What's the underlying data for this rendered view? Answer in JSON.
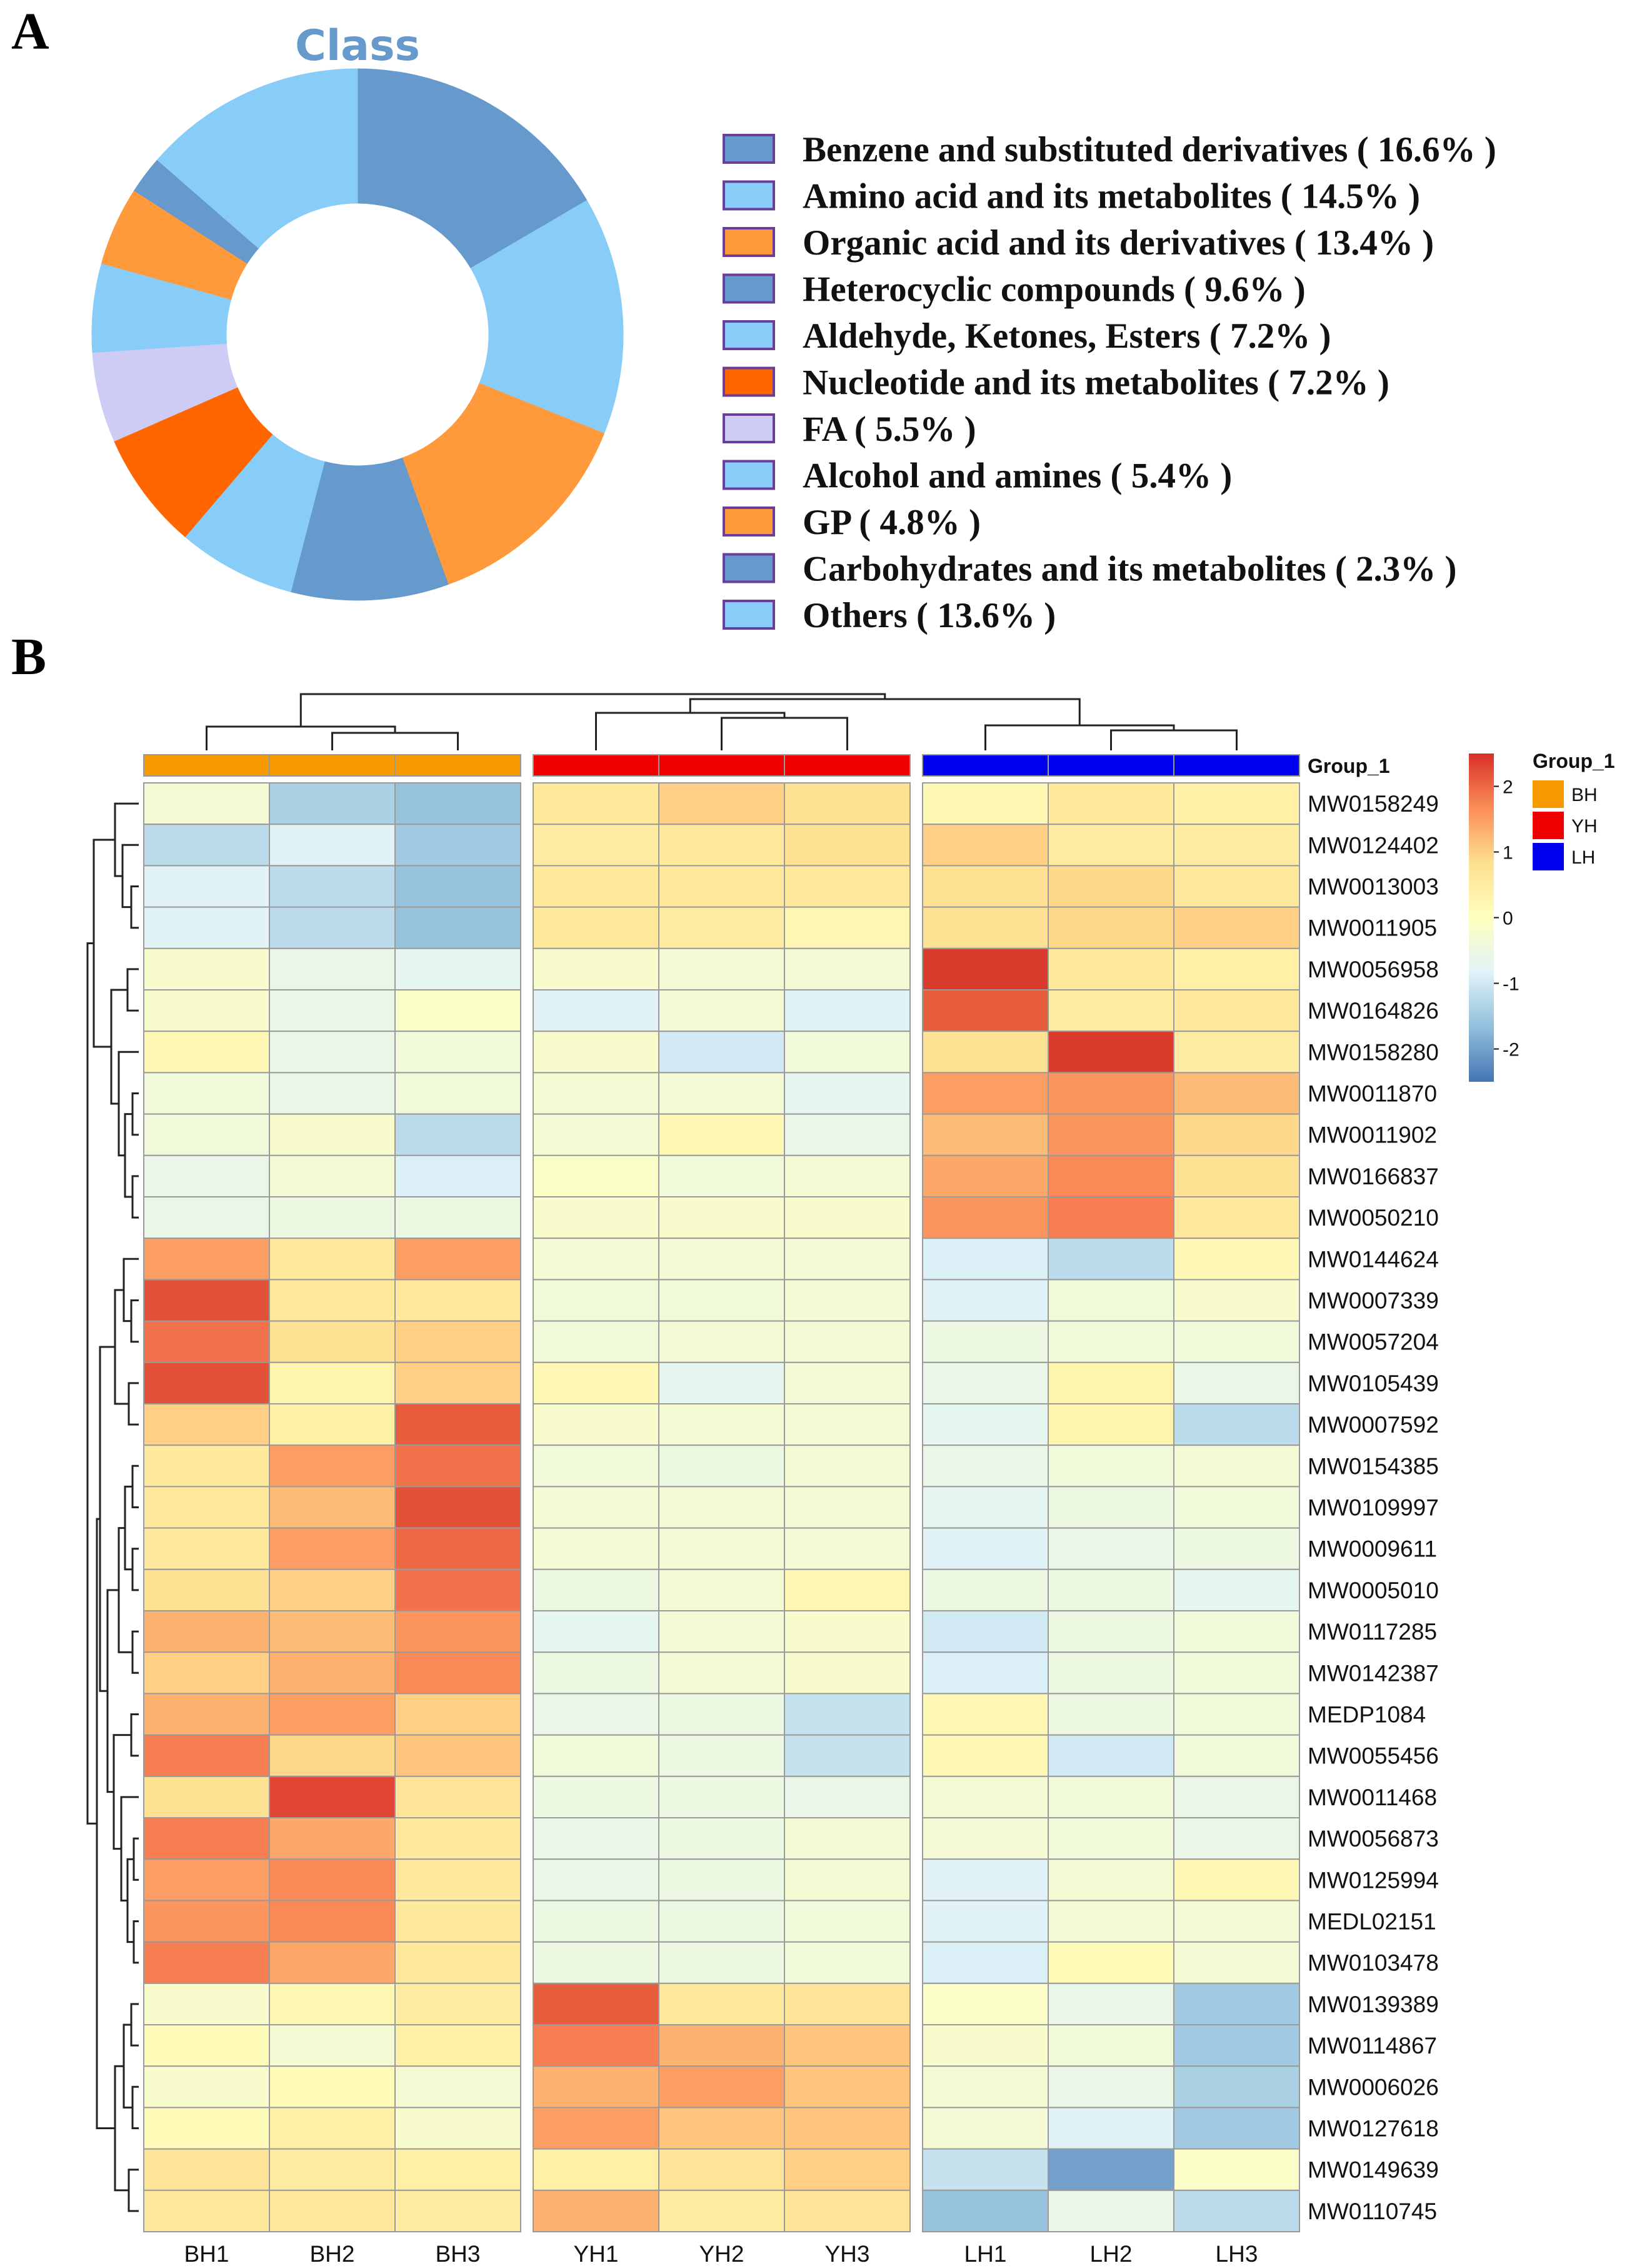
{
  "panel_a": {
    "letter": "A"
  },
  "panel_b": {
    "letter": "B"
  },
  "chart_data": [
    {
      "type": "pie",
      "donut": true,
      "title": "Class",
      "slices": [
        {
          "label": "Benzene and substituted derivatives ( 16.6% )",
          "value": 16.6,
          "color": "#6699cc"
        },
        {
          "label": "Amino acid and its metabolites ( 14.5% )",
          "value": 14.5,
          "color": "#88ccf8"
        },
        {
          "label": "Organic acid and its derivatives ( 13.4% )",
          "value": 13.4,
          "color": "#ff9a3c"
        },
        {
          "label": "Heterocyclic compounds ( 9.6% )",
          "value": 9.6,
          "color": "#6699cc"
        },
        {
          "label": "Aldehyde, Ketones, Esters ( 7.2% )",
          "value": 7.2,
          "color": "#88ccf8"
        },
        {
          "label": "Nucleotide and its metabolites ( 7.2% )",
          "value": 7.2,
          "color": "#ff6600"
        },
        {
          "label": "FA ( 5.5% )",
          "value": 5.5,
          "color": "#ccccf4"
        },
        {
          "label": "Alcohol and amines ( 5.4% )",
          "value": 5.4,
          "color": "#88ccf8"
        },
        {
          "label": "GP ( 4.8% )",
          "value": 4.8,
          "color": "#ff9a3c"
        },
        {
          "label": "Carbohydrates and its metabolites ( 2.3% )",
          "value": 2.3,
          "color": "#6699cc"
        },
        {
          "label": "Others ( 13.6% )",
          "value": 13.6,
          "color": "#88ccf8"
        }
      ]
    },
    {
      "type": "heatmap",
      "columns": [
        "BH1",
        "BH2",
        "BH3",
        "YH1",
        "YH2",
        "YH3",
        "LH1",
        "LH2",
        "LH3"
      ],
      "column_groups": [
        "BH",
        "BH",
        "BH",
        "YH",
        "YH",
        "YH",
        "LH",
        "LH",
        "LH"
      ],
      "group_annotation_title": "Group_1",
      "groups": [
        {
          "name": "BH",
          "color": "#f79a00"
        },
        {
          "name": "YH",
          "color": "#ee0000"
        },
        {
          "name": "LH",
          "color": "#0000ee"
        }
      ],
      "color_scale": {
        "min": -2.5,
        "max": 2.5,
        "ticks": [
          2,
          1,
          0,
          -1,
          -2
        ],
        "colors": [
          "#4575b4",
          "#91bfdb",
          "#e0f3f8",
          "#ffffbf",
          "#fee090",
          "#fc8d59",
          "#d73027"
        ]
      },
      "rows": [
        {
          "label": "MW0158249",
          "values": [
            -0.3,
            -1.4,
            -1.6,
            0.6,
            1.0,
            0.8,
            0.2,
            0.6,
            0.4
          ]
        },
        {
          "label": "MW0124402",
          "values": [
            -1.2,
            -0.8,
            -1.5,
            0.5,
            0.6,
            0.8,
            1.0,
            0.5,
            0.5
          ]
        },
        {
          "label": "MW0013003",
          "values": [
            -0.8,
            -1.2,
            -1.6,
            0.6,
            0.6,
            0.6,
            0.8,
            0.9,
            0.6
          ]
        },
        {
          "label": "MW0011905",
          "values": [
            -0.8,
            -1.2,
            -1.6,
            0.6,
            0.5,
            0.2,
            0.8,
            0.9,
            1.0
          ]
        },
        {
          "label": "MW0056958",
          "values": [
            -0.2,
            -0.6,
            -0.7,
            -0.2,
            -0.3,
            -0.3,
            2.4,
            0.6,
            0.4
          ]
        },
        {
          "label": "MW0164826",
          "values": [
            -0.2,
            -0.6,
            -0.1,
            -0.8,
            -0.3,
            -0.8,
            2.1,
            0.5,
            0.6
          ]
        },
        {
          "label": "MW0158280",
          "values": [
            0.2,
            -0.6,
            -0.4,
            -0.2,
            -1.0,
            -0.4,
            0.8,
            2.4,
            0.5
          ]
        },
        {
          "label": "MW0011870",
          "values": [
            -0.4,
            -0.6,
            -0.4,
            -0.3,
            -0.3,
            -0.7,
            1.5,
            1.6,
            1.2
          ]
        },
        {
          "label": "MW0011902",
          "values": [
            -0.4,
            -0.2,
            -1.2,
            -0.3,
            0.2,
            -0.6,
            1.2,
            1.6,
            0.9
          ]
        },
        {
          "label": "MW0166837",
          "values": [
            -0.6,
            -0.3,
            -0.9,
            -0.1,
            -0.4,
            -0.3,
            1.4,
            1.7,
            0.8
          ]
        },
        {
          "label": "MW0050210",
          "values": [
            -0.6,
            -0.5,
            -0.5,
            -0.2,
            -0.2,
            -0.2,
            1.6,
            1.8,
            0.6
          ]
        },
        {
          "label": "MW0144624",
          "values": [
            1.5,
            0.6,
            1.5,
            -0.3,
            -0.3,
            -0.3,
            -0.9,
            -1.2,
            0.2
          ]
        },
        {
          "label": "MW0007339",
          "values": [
            2.2,
            0.6,
            0.6,
            -0.4,
            -0.4,
            -0.3,
            -0.8,
            -0.4,
            -0.2
          ]
        },
        {
          "label": "MW0057204",
          "values": [
            1.9,
            0.8,
            1.0,
            -0.4,
            -0.3,
            -0.3,
            -0.5,
            -0.4,
            -0.4
          ]
        },
        {
          "label": "MW0105439",
          "values": [
            2.2,
            0.3,
            1.0,
            0.2,
            -0.7,
            -0.3,
            -0.6,
            0.3,
            -0.6
          ]
        },
        {
          "label": "MW0007592",
          "values": [
            1.0,
            0.4,
            2.1,
            -0.2,
            -0.3,
            -0.3,
            -0.7,
            0.3,
            -1.2
          ]
        },
        {
          "label": "MW0154385",
          "values": [
            0.6,
            1.5,
            1.9,
            -0.4,
            -0.5,
            -0.3,
            -0.6,
            -0.4,
            -0.3
          ]
        },
        {
          "label": "MW0109997",
          "values": [
            0.6,
            1.2,
            2.2,
            -0.3,
            -0.3,
            -0.3,
            -0.7,
            -0.5,
            -0.4
          ]
        },
        {
          "label": "MW0009611",
          "values": [
            0.6,
            1.5,
            2.0,
            -0.3,
            -0.3,
            -0.3,
            -0.8,
            -0.6,
            -0.5
          ]
        },
        {
          "label": "MW0005010",
          "values": [
            0.8,
            1.0,
            1.9,
            -0.5,
            -0.3,
            0.2,
            -0.5,
            -0.5,
            -0.7
          ]
        },
        {
          "label": "MW0117285",
          "values": [
            1.3,
            1.2,
            1.6,
            -0.7,
            -0.3,
            -0.2,
            -1.0,
            -0.5,
            -0.4
          ]
        },
        {
          "label": "MW0142387",
          "values": [
            1.0,
            1.3,
            1.7,
            -0.5,
            -0.3,
            -0.2,
            -0.9,
            -0.5,
            -0.4
          ]
        },
        {
          "label": "MEDP1084",
          "values": [
            1.3,
            1.5,
            1.0,
            -0.6,
            -0.5,
            -1.1,
            0.2,
            -0.5,
            -0.4
          ]
        },
        {
          "label": "MW0055456",
          "values": [
            1.8,
            0.9,
            1.1,
            -0.4,
            -0.5,
            -1.1,
            0.2,
            -1.0,
            -0.4
          ]
        },
        {
          "label": "MW0011468",
          "values": [
            0.8,
            2.3,
            0.7,
            -0.5,
            -0.5,
            -0.6,
            -0.3,
            -0.4,
            -0.6
          ]
        },
        {
          "label": "MW0056873",
          "values": [
            1.8,
            1.4,
            0.6,
            -0.6,
            -0.5,
            -0.3,
            -0.3,
            -0.4,
            -0.6
          ]
        },
        {
          "label": "MW0125994",
          "values": [
            1.5,
            1.7,
            0.6,
            -0.6,
            -0.5,
            -0.3,
            -0.8,
            -0.3,
            0.2
          ]
        },
        {
          "label": "MEDL02151",
          "values": [
            1.6,
            1.7,
            0.6,
            -0.5,
            -0.5,
            -0.4,
            -0.8,
            -0.3,
            -0.3
          ]
        },
        {
          "label": "MW0103478",
          "values": [
            1.8,
            1.4,
            0.6,
            -0.5,
            -0.5,
            -0.4,
            -0.9,
            0.1,
            -0.3
          ]
        },
        {
          "label": "MW0139389",
          "values": [
            -0.2,
            0.2,
            0.5,
            2.1,
            0.6,
            0.7,
            -0.1,
            -0.6,
            -1.5
          ]
        },
        {
          "label": "MW0114867",
          "values": [
            0.1,
            -0.3,
            0.4,
            1.8,
            1.3,
            1.1,
            -0.2,
            -0.4,
            -1.5
          ]
        },
        {
          "label": "MW0006026",
          "values": [
            -0.2,
            0.1,
            -0.3,
            1.3,
            1.5,
            1.1,
            -0.3,
            -0.6,
            -1.4
          ]
        },
        {
          "label": "MW0127618",
          "values": [
            0.1,
            0.4,
            -0.2,
            1.5,
            1.1,
            1.1,
            -0.3,
            -0.8,
            -1.5
          ]
        },
        {
          "label": "MW0149639",
          "values": [
            0.7,
            0.5,
            0.4,
            0.4,
            0.7,
            1.0,
            -1.1,
            -2.0,
            -0.1
          ]
        },
        {
          "label": "MW0110745",
          "values": [
            0.6,
            0.6,
            0.5,
            1.3,
            0.5,
            0.7,
            -1.6,
            -0.6,
            -1.2
          ]
        }
      ]
    }
  ]
}
